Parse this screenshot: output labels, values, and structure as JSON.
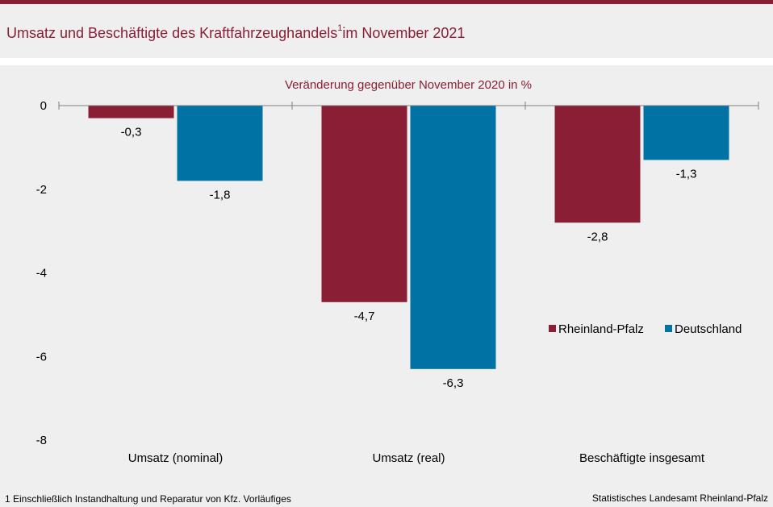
{
  "header": {
    "title": "Umsatz und Beschäftigte des Kraftfahrzeughandels",
    "title_sup": "1",
    "title_suffix": "im November 2021"
  },
  "chart_data": {
    "type": "bar",
    "subtitle": "Veränderung gegenüber November 2020 in %",
    "categories": [
      "Umsatz (nominal)",
      "Umsatz (real)",
      "Beschäftigte insgesamt"
    ],
    "series": [
      {
        "name": "Rheinland-Pfalz",
        "values": [
          -0.3,
          -4.7,
          -2.8
        ],
        "labels": [
          "-0,3",
          "-4,7",
          "-2,8"
        ],
        "color": "#8a1e34"
      },
      {
        "name": "Deutschland",
        "values": [
          -1.8,
          -6.3,
          -1.3
        ],
        "labels": [
          "-1,8",
          "-6,3",
          "-1,3"
        ],
        "color": "#0072a3"
      }
    ],
    "ylim": [
      -8,
      0
    ],
    "yticks": [
      0,
      -2,
      -4,
      -6,
      -8
    ],
    "ytick_labels": [
      "0",
      "-2",
      "-4",
      "-6",
      "-8"
    ],
    "grid": false,
    "legend_position": "right"
  },
  "footer": {
    "footnote": "1 Einschließlich Instandhaltung und Reparatur von Kfz. Vorläufiges",
    "source": "Statistisches Landesamt Rheinland-Pfalz"
  }
}
